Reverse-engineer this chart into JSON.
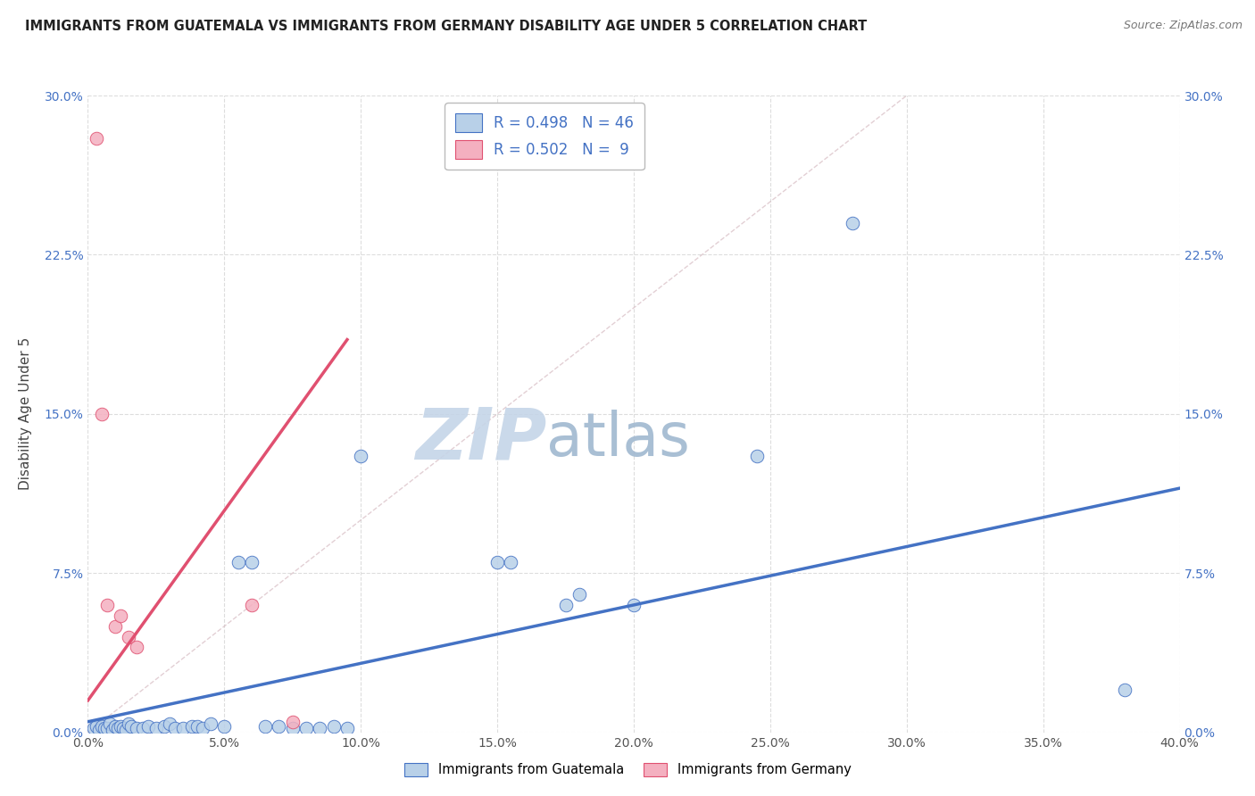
{
  "title": "IMMIGRANTS FROM GUATEMALA VS IMMIGRANTS FROM GERMANY DISABILITY AGE UNDER 5 CORRELATION CHART",
  "source": "Source: ZipAtlas.com",
  "ylabel": "Disability Age Under 5",
  "legend_label1": "Immigrants from Guatemala",
  "legend_label2": "Immigrants from Germany",
  "r1": 0.498,
  "n1": 46,
  "r2": 0.502,
  "n2": 9,
  "xlim": [
    0.0,
    0.4
  ],
  "ylim": [
    0.0,
    0.3
  ],
  "xticks": [
    0.0,
    0.05,
    0.1,
    0.15,
    0.2,
    0.25,
    0.3,
    0.35,
    0.4
  ],
  "yticks": [
    0.0,
    0.075,
    0.15,
    0.225,
    0.3
  ],
  "color_guatemala": "#b8d0e8",
  "color_germany": "#f4b0c0",
  "color_line_guatemala": "#4472c4",
  "color_line_germany": "#e05070",
  "scatter_guatemala": [
    [
      0.002,
      0.002
    ],
    [
      0.003,
      0.003
    ],
    [
      0.004,
      0.001
    ],
    [
      0.005,
      0.003
    ],
    [
      0.006,
      0.002
    ],
    [
      0.007,
      0.002
    ],
    [
      0.008,
      0.004
    ],
    [
      0.009,
      0.001
    ],
    [
      0.01,
      0.003
    ],
    [
      0.011,
      0.002
    ],
    [
      0.012,
      0.003
    ],
    [
      0.013,
      0.002
    ],
    [
      0.014,
      0.001
    ],
    [
      0.015,
      0.004
    ],
    [
      0.016,
      0.003
    ],
    [
      0.018,
      0.002
    ],
    [
      0.02,
      0.002
    ],
    [
      0.022,
      0.003
    ],
    [
      0.025,
      0.002
    ],
    [
      0.028,
      0.003
    ],
    [
      0.03,
      0.004
    ],
    [
      0.032,
      0.002
    ],
    [
      0.035,
      0.002
    ],
    [
      0.038,
      0.003
    ],
    [
      0.04,
      0.003
    ],
    [
      0.042,
      0.002
    ],
    [
      0.045,
      0.004
    ],
    [
      0.05,
      0.003
    ],
    [
      0.055,
      0.08
    ],
    [
      0.06,
      0.08
    ],
    [
      0.065,
      0.003
    ],
    [
      0.07,
      0.003
    ],
    [
      0.075,
      0.002
    ],
    [
      0.08,
      0.002
    ],
    [
      0.085,
      0.002
    ],
    [
      0.09,
      0.003
    ],
    [
      0.095,
      0.002
    ],
    [
      0.1,
      0.13
    ],
    [
      0.15,
      0.08
    ],
    [
      0.155,
      0.08
    ],
    [
      0.175,
      0.06
    ],
    [
      0.18,
      0.065
    ],
    [
      0.2,
      0.06
    ],
    [
      0.245,
      0.13
    ],
    [
      0.28,
      0.24
    ],
    [
      0.38,
      0.02
    ]
  ],
  "scatter_germany": [
    [
      0.003,
      0.28
    ],
    [
      0.005,
      0.15
    ],
    [
      0.007,
      0.06
    ],
    [
      0.01,
      0.05
    ],
    [
      0.012,
      0.055
    ],
    [
      0.015,
      0.045
    ],
    [
      0.018,
      0.04
    ],
    [
      0.06,
      0.06
    ],
    [
      0.075,
      0.005
    ]
  ],
  "reg_line_guatemala": {
    "x_start": 0.0,
    "y_start": 0.005,
    "x_end": 0.4,
    "y_end": 0.115
  },
  "reg_line_germany": {
    "x_start": 0.0,
    "y_start": 0.015,
    "x_end": 0.095,
    "y_end": 0.185
  },
  "diag_line": {
    "x_start": 0.0,
    "y_start": 0.0,
    "x_end": 0.3,
    "y_end": 0.3
  },
  "background_color": "#ffffff",
  "grid_color": "#dddddd",
  "watermark_zip": "ZIP",
  "watermark_atlas": "atlas",
  "watermark_color_zip": "#c5d5e8",
  "watermark_color_atlas": "#a0b8d0"
}
